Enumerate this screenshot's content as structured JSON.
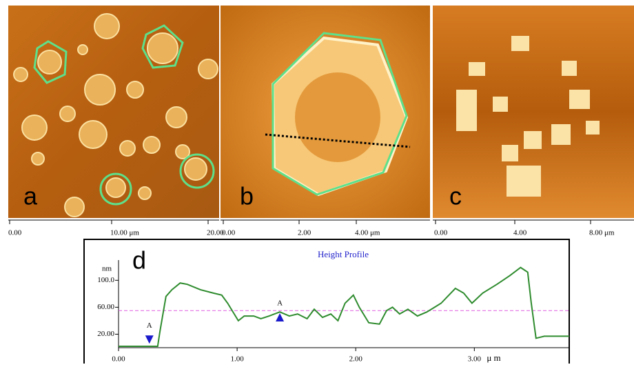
{
  "images": [
    {
      "label": "a",
      "ticks": [
        "0.00",
        "10.00  μm",
        "20.00"
      ]
    },
    {
      "label": "b",
      "ticks": [
        "0.00",
        "2.00",
        "4.00 μm"
      ]
    },
    {
      "label": "c",
      "ticks": [
        "0.00",
        "4.00",
        "8.00 μm"
      ]
    }
  ],
  "chart_data": {
    "type": "line",
    "panel_label": "d",
    "title": "Height Profile",
    "y_label": "nm",
    "x_label": "μ m",
    "xlim": [
      0,
      3.8
    ],
    "ylim": [
      0,
      130
    ],
    "xticks": [
      {
        "value": 0,
        "label": "0.00"
      },
      {
        "value": 1,
        "label": "1.00"
      },
      {
        "value": 2,
        "label": "2.00"
      },
      {
        "value": 3,
        "label": "3.00"
      }
    ],
    "yticks": [
      {
        "value": 20,
        "label": "20.00"
      },
      {
        "value": 60,
        "label": "60.00"
      },
      {
        "value": 100,
        "label": "100.0"
      }
    ],
    "color": "#2e8b2e",
    "x": [
      0,
      0.33,
      0.35,
      0.4,
      0.45,
      0.52,
      0.58,
      0.69,
      0.8,
      0.87,
      0.92,
      1.01,
      1.06,
      1.14,
      1.2,
      1.27,
      1.36,
      1.44,
      1.51,
      1.59,
      1.65,
      1.72,
      1.79,
      1.85,
      1.91,
      1.98,
      2.03,
      2.11,
      2.2,
      2.26,
      2.31,
      2.37,
      2.44,
      2.52,
      2.6,
      2.72,
      2.84,
      2.91,
      2.98,
      3.07,
      3.19,
      3.3,
      3.39,
      3.45,
      3.48,
      3.52,
      3.59,
      3.8
    ],
    "values": [
      2,
      2,
      25,
      76,
      86,
      96,
      94,
      86,
      81,
      78,
      66,
      40,
      47,
      47,
      43,
      47,
      53,
      47,
      50,
      43,
      57,
      45,
      50,
      40,
      66,
      78,
      60,
      37,
      35,
      55,
      60,
      50,
      57,
      47,
      53,
      66,
      88,
      81,
      66,
      81,
      94,
      107,
      119,
      112,
      66,
      14,
      17,
      17
    ],
    "reference_line": 55,
    "reference_color": "#e060e0",
    "annotations": [
      {
        "text": "A",
        "x": 0.26,
        "value": 12,
        "direction": "down"
      },
      {
        "text": "A",
        "x": 1.36,
        "value": 45,
        "direction": "up"
      }
    ],
    "marker_color": "#1a1acc"
  }
}
